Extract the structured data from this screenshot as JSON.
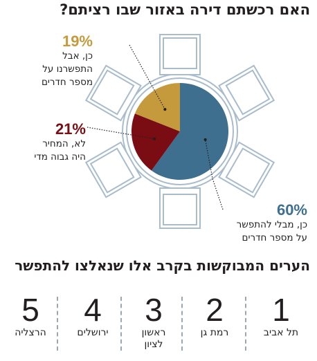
{
  "title": "האם רכשתם דירה באזור שבו רציתם?",
  "chart_data": {
    "type": "pie",
    "slices": [
      {
        "label_pct": "60%",
        "value": 60,
        "label": "כן, מבלי להתפשר\nעל מספר חדרים",
        "color": "#3e6f8f"
      },
      {
        "label_pct": "21%",
        "value": 21,
        "label": "לא, המחיר\nהיה גבוה מדי",
        "color": "#7a0c14"
      },
      {
        "label_pct": "19%",
        "value": 19,
        "label": "כן, אבל\nהתפשרנו על\nמספר חדרים",
        "color": "#c49a3c"
      }
    ],
    "colors": {
      "pct_60": "#3e6f8f",
      "pct_21": "#7a0c14",
      "pct_19": "#c49a3c",
      "table": "#a9bccb"
    }
  },
  "cities_section": {
    "title": "הערים המבוקשות בקרב אלו שנאלצו להתפשר",
    "items": [
      {
        "rank": "1",
        "name": "תל אביב"
      },
      {
        "rank": "2",
        "name": "רמת גן"
      },
      {
        "rank": "3",
        "name": "ראשון\nלציון"
      },
      {
        "rank": "4",
        "name": "ירושלים"
      },
      {
        "rank": "5",
        "name": "הרצליה"
      }
    ]
  }
}
